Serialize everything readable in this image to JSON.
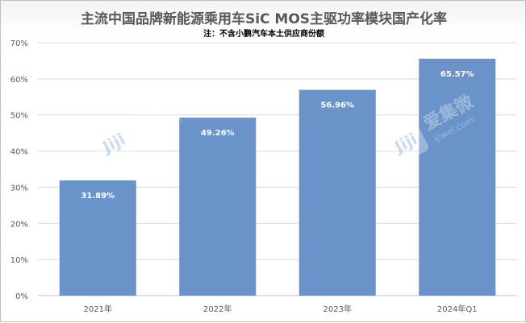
{
  "chart_data": {
    "type": "bar",
    "title": "主流中国品牌新能源乘用车SiC MOS主驱功率模块国产化率",
    "subtitle": "注：不含小鹏汽车本土供应商份额",
    "categories": [
      "2021年",
      "2022年",
      "2023年",
      "2024年Q1"
    ],
    "values": [
      31.89,
      49.26,
      56.96,
      65.57
    ],
    "data_labels": [
      "31.89%",
      "49.26%",
      "56.96%",
      "65.57%"
    ],
    "ylim": [
      0,
      70
    ],
    "yticks": [
      "0%",
      "10%",
      "20%",
      "30%",
      "40%",
      "50%",
      "60%",
      "70%"
    ],
    "grid": true,
    "colors": {
      "bar": "#6a93c9",
      "grid": "#d9d9d9",
      "axis_text": "#595959",
      "label_text": "#ffffff"
    }
  },
  "watermark": {
    "logo_letters": "Jiji",
    "brand": "爱集微",
    "domain": "ijiwei.com"
  }
}
